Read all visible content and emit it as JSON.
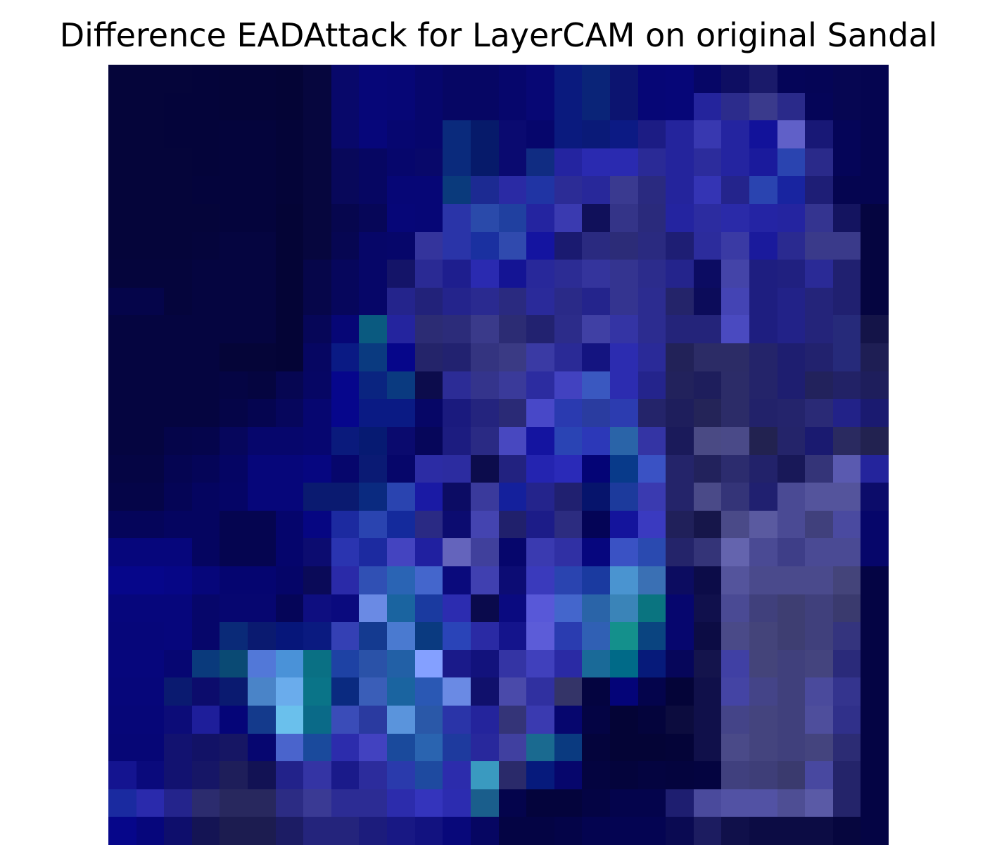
{
  "figure": {
    "title": "Difference EADAttack for LayerCAM on original Sandal"
  },
  "image": {
    "description_kind": "pixelated 28x28 heatmap in dark-blue / purple / cyan tones",
    "rows": [
      [
        "#05053a",
        "#05053a",
        "#05053a",
        "#04043a",
        "#040438",
        "#040438",
        "#040436",
        "#06063e",
        "#08086a",
        "#060678",
        "#060676",
        "#06066c",
        "#060664",
        "#060664",
        "#06066c",
        "#070774",
        "#0a1a7e",
        "#0a2478",
        "#0c1470",
        "#060676",
        "#060678",
        "#060666",
        "#0e0e62",
        "#1a1a6a",
        "#050558",
        "#050556",
        "#060652",
        "#050550"
      ],
      [
        "#05053a",
        "#05053a",
        "#04043a",
        "#04043a",
        "#040438",
        "#040438",
        "#040436",
        "#06063e",
        "#08086a",
        "#060678",
        "#060676",
        "#06066c",
        "#060664",
        "#060664",
        "#06066c",
        "#070774",
        "#0a1a7e",
        "#0a2478",
        "#0c1470",
        "#060676",
        "#060678",
        "#24249c",
        "#2c2c8c",
        "#3a3a8c",
        "#2a2a8a",
        "#050558",
        "#060652",
        "#050550"
      ],
      [
        "#05053a",
        "#05053a",
        "#04043a",
        "#04043a",
        "#04043c",
        "#04043c",
        "#040438",
        "#06063e",
        "#08086a",
        "#06067a",
        "#060670",
        "#06066c",
        "#0a2a7c",
        "#061a6a",
        "#0a0a70",
        "#06066c",
        "#0a1a7e",
        "#0a1a78",
        "#0c1a84",
        "#1c1c84",
        "#24249c",
        "#3838b0",
        "#2424a0",
        "#12129a",
        "#6060c8",
        "#181876",
        "#050558",
        "#050550"
      ],
      [
        "#05053a",
        "#05053a",
        "#05053a",
        "#04043a",
        "#04043c",
        "#04043c",
        "#040438",
        "#06063e",
        "#08085a",
        "#060662",
        "#06066c",
        "#08086a",
        "#0a2a7c",
        "#061a6a",
        "#0a0a70",
        "#102c82",
        "#2424a0",
        "#2a2ab0",
        "#2a2ab0",
        "#2a2a96",
        "#24249c",
        "#2c2c9c",
        "#2424a0",
        "#1a1a9c",
        "#2a44b0",
        "#2a2a8a",
        "#050558",
        "#050550"
      ],
      [
        "#05053a",
        "#05053a",
        "#05053a",
        "#04043c",
        "#04043c",
        "#04043c",
        "#040438",
        "#06063e",
        "#08085a",
        "#060662",
        "#060676",
        "#060676",
        "#0a3a7c",
        "#1c2a92",
        "#2a2aa4",
        "#2034a4",
        "#2c2c96",
        "#28289a",
        "#3a3a90",
        "#2a2a80",
        "#24249c",
        "#3434b4",
        "#24248c",
        "#2a44b0",
        "#1824a0",
        "#1e1e76",
        "#050550",
        "#050550"
      ],
      [
        "#05053a",
        "#05053a",
        "#05053a",
        "#05053a",
        "#04043c",
        "#04043c",
        "#040436",
        "#06063e",
        "#06064e",
        "#060658",
        "#060678",
        "#060676",
        "#2a34a8",
        "#2a4aaa",
        "#2040a0",
        "#2424a0",
        "#3a3ab0",
        "#10105a",
        "#343488",
        "#2a2a7c",
        "#2424a0",
        "#2c2ca0",
        "#2a2aa8",
        "#2424a4",
        "#2424a0",
        "#343490",
        "#141460",
        "#050540"
      ],
      [
        "#05053a",
        "#05053a",
        "#05053a",
        "#05053c",
        "#050540",
        "#050540",
        "#040436",
        "#06063e",
        "#060652",
        "#060668",
        "#06066a",
        "#34349c",
        "#2a34a8",
        "#1a30a0",
        "#304aae",
        "#1414a0",
        "#1a1a70",
        "#2a2a80",
        "#2c2c78",
        "#2a2a80",
        "#1e1e74",
        "#2c2c9c",
        "#3a3aa4",
        "#1a1a9c",
        "#2a2a90",
        "#3a3a8a",
        "#3a3a8a",
        "#050540"
      ],
      [
        "#05053c",
        "#05053c",
        "#05053c",
        "#050540",
        "#050540",
        "#050540",
        "#040436",
        "#06064a",
        "#06065c",
        "#060668",
        "#141468",
        "#2a2a94",
        "#1e1e8e",
        "#2a2ab0",
        "#141494",
        "#28289a",
        "#2c2c94",
        "#34349c",
        "#343490",
        "#2c2c8c",
        "#24248c",
        "#0c0c62",
        "#4444a8",
        "#1e1e80",
        "#202080",
        "#2a2a96",
        "#202070",
        "#050540"
      ],
      [
        "#05054a",
        "#05054a",
        "#05053c",
        "#050540",
        "#050540",
        "#050540",
        "#040436",
        "#06064a",
        "#06065c",
        "#060668",
        "#24248c",
        "#22227a",
        "#24248c",
        "#2a2a90",
        "#2a2a80",
        "#2a2a9a",
        "#2a2a88",
        "#24248c",
        "#343490",
        "#2c2c90",
        "#24246a",
        "#0c0c5a",
        "#4444b4",
        "#1e1e80",
        "#222288",
        "#24247a",
        "#202070",
        "#050540"
      ],
      [
        "#050540",
        "#050540",
        "#050540",
        "#050540",
        "#050540",
        "#050540",
        "#040436",
        "#060658",
        "#060676",
        "#0a5a80",
        "#24249e",
        "#2c2c74",
        "#2c2c7a",
        "#3a3a8a",
        "#2c2c74",
        "#222270",
        "#2c2c8a",
        "#4040a4",
        "#3434a4",
        "#2c2c90",
        "#24247a",
        "#24247a",
        "#4a4ac0",
        "#1e1e80",
        "#222288",
        "#24247a",
        "#262a7a",
        "#141448"
      ],
      [
        "#050540",
        "#050540",
        "#050540",
        "#050540",
        "#050538",
        "#050538",
        "#040436",
        "#060662",
        "#0a1a84",
        "#0a3a80",
        "#06068a",
        "#24246a",
        "#222270",
        "#343480",
        "#3a3a84",
        "#3a3aa4",
        "#2a2a96",
        "#141480",
        "#2c2cb0",
        "#2a2a98",
        "#222258",
        "#2c2c66",
        "#2c2c66",
        "#24246a",
        "#1e1e70",
        "#22226e",
        "#262a7a",
        "#1e1e54"
      ],
      [
        "#050540",
        "#050540",
        "#050540",
        "#050540",
        "#050544",
        "#050540",
        "#060652",
        "#060664",
        "#06068c",
        "#0a2480",
        "#0a3a80",
        "#0c0c4c",
        "#2c2c96",
        "#34348c",
        "#3a3a9a",
        "#2c2ca0",
        "#4242c0",
        "#3a58c0",
        "#2c2cb0",
        "#24248c",
        "#22225c",
        "#1e1e5c",
        "#2c2c68",
        "#24246a",
        "#1e1e70",
        "#22225c",
        "#222266",
        "#1e1e5c"
      ],
      [
        "#050540",
        "#050540",
        "#050540",
        "#050540",
        "#050548",
        "#050550",
        "#06065c",
        "#060670",
        "#06068c",
        "#0a1a84",
        "#0a1a84",
        "#060666",
        "#1a1a7e",
        "#24247e",
        "#2a2a76",
        "#4848c8",
        "#2a3ab0",
        "#2a3ca0",
        "#2c3cb0",
        "#24246a",
        "#1e1e5c",
        "#242458",
        "#2c2c68",
        "#22226a",
        "#24246c",
        "#2a2a76",
        "#222288",
        "#1a1a70"
      ],
      [
        "#050540",
        "#050540",
        "#05054a",
        "#05054c",
        "#06065c",
        "#06066c",
        "#06066c",
        "#060670",
        "#0a1a7c",
        "#061a72",
        "#0a0a6e",
        "#06065a",
        "#1c1c80",
        "#2a2a84",
        "#4848c0",
        "#1414a0",
        "#2a44b4",
        "#2c38b8",
        "#2a64a8",
        "#3434a4",
        "#1a1a5a",
        "#4a4a84",
        "#4a4a88",
        "#222250",
        "#24246a",
        "#1a1a70",
        "#2a2a60",
        "#222250"
      ],
      [
        "#050544",
        "#050544",
        "#050552",
        "#050558",
        "#050564",
        "#06067a",
        "#06067a",
        "#060680",
        "#06066c",
        "#0a1a74",
        "#06066a",
        "#2c2ca4",
        "#2c2ca0",
        "#0c0c4c",
        "#222280",
        "#2424b0",
        "#2a2ab8",
        "#040476",
        "#083a8a",
        "#3a52c4",
        "#24246a",
        "#22225c",
        "#2c2c6e",
        "#22226a",
        "#181858",
        "#343478",
        "#5a5ab0",
        "#24249c"
      ],
      [
        "#050548",
        "#050548",
        "#050556",
        "#050560",
        "#050566",
        "#06067a",
        "#06067a",
        "#0a1a70",
        "#0a1a70",
        "#0a2a80",
        "#2a44b0",
        "#1a1aa4",
        "#0c0c64",
        "#3a3a9c",
        "#14209c",
        "#24248c",
        "#202070",
        "#06146c",
        "#1c3a9c",
        "#3a3ab0",
        "#24246a",
        "#4a4a88",
        "#343478",
        "#202070",
        "#4a4a94",
        "#54549c",
        "#54549c",
        "#0c0c6a"
      ],
      [
        "#05055a",
        "#05055a",
        "#050560",
        "#050560",
        "#050550",
        "#050550",
        "#05056c",
        "#060682",
        "#1c2aa0",
        "#2a44b0",
        "#142a9c",
        "#2a2a84",
        "#0c0c70",
        "#4444b0",
        "#20206c",
        "#1c1c88",
        "#2c2c80",
        "#040456",
        "#14149c",
        "#3a3ac0",
        "#20205a",
        "#16164a",
        "#4a4a88",
        "#5a5aa0",
        "#4a4a94",
        "#40407c",
        "#4a4aa0",
        "#06066a"
      ],
      [
        "#06067c",
        "#06067c",
        "#06067c",
        "#050560",
        "#050550",
        "#050550",
        "#05056c",
        "#0c0c70",
        "#2a34b0",
        "#1c2aa0",
        "#4444c0",
        "#2020a0",
        "#6464bc",
        "#40409c",
        "#06066c",
        "#3a3ab0",
        "#3030a4",
        "#06067e",
        "#3a52c4",
        "#2a4ab0",
        "#24246a",
        "#343478",
        "#6464ae",
        "#4a4a94",
        "#3e3e88",
        "#4a4a94",
        "#4a4a94",
        "#06066a"
      ],
      [
        "#06068a",
        "#06068a",
        "#060686",
        "#06067a",
        "#050570",
        "#050570",
        "#050568",
        "#0a0a58",
        "#2a2aa8",
        "#3050b4",
        "#2a64b4",
        "#4466cc",
        "#0a0a7c",
        "#4040b0",
        "#0c0c74",
        "#3a3abc",
        "#2a44b0",
        "#1a3aa0",
        "#4a94d0",
        "#3a70b4",
        "#0c0c60",
        "#0c0c48",
        "#54549c",
        "#4a4a8c",
        "#4a4a8c",
        "#4a4a8c",
        "#44447a",
        "#040444"
      ],
      [
        "#06067c",
        "#06067c",
        "#06067c",
        "#06066a",
        "#060670",
        "#060670",
        "#050558",
        "#0e0e80",
        "#0a0a7e",
        "#6a8ae4",
        "#1a64a0",
        "#1a3aa0",
        "#2c2cb0",
        "#0a0a4c",
        "#0a0a80",
        "#5858d8",
        "#4466cc",
        "#2a64a8",
        "#3a84b8",
        "#0a7480",
        "#06066e",
        "#10104c",
        "#4a4a94",
        "#40407c",
        "#3e3e72",
        "#40407c",
        "#3a3a6e",
        "#040444"
      ],
      [
        "#06067a",
        "#06067a",
        "#06067c",
        "#06066a",
        "#0a2a78",
        "#0a1a70",
        "#06167a",
        "#0a1a80",
        "#3440b4",
        "#143a90",
        "#4a7ad0",
        "#0a3a80",
        "#2a44b8",
        "#2a2aa4",
        "#14148c",
        "#5c5cd8",
        "#2a3cb0",
        "#3060b4",
        "#14908c",
        "#0a4480",
        "#06066e",
        "#0c0c44",
        "#4a4a88",
        "#44447a",
        "#3e3e72",
        "#40407c",
        "#34347e",
        "#040444"
      ],
      [
        "#06067c",
        "#06067c",
        "#060672",
        "#0a3a7c",
        "#0a4a74",
        "#5278d8",
        "#4a92d8",
        "#0a7084",
        "#1e42a4",
        "#2a52a8",
        "#2260a6",
        "#84a0ff",
        "#1a1a8a",
        "#12127c",
        "#3434a4",
        "#4040bc",
        "#2a2aa4",
        "#1a6a98",
        "#006a88",
        "#061a7a",
        "#06065a",
        "#14144c",
        "#4040a4",
        "#44447a",
        "#40407c",
        "#44447e",
        "#2a2a7a",
        "#040444"
      ],
      [
        "#06067a",
        "#06067a",
        "#0a1a70",
        "#0c0c6c",
        "#0a1a70",
        "#4a84c8",
        "#6aacec",
        "#0a7488",
        "#0a2a80",
        "#3a5eb8",
        "#1a64a0",
        "#2a58b4",
        "#6a8ae4",
        "#10106c",
        "#4a4aaa",
        "#3030a0",
        "#343468",
        "#040440",
        "#040478",
        "#04044c",
        "#040438",
        "#10104a",
        "#4444a4",
        "#444488",
        "#40407c",
        "#4a4a9c",
        "#34348e",
        "#040444"
      ],
      [
        "#060678",
        "#060678",
        "#0c0c78",
        "#1e1e9a",
        "#050578",
        "#143a8c",
        "#6ac0ec",
        "#0a6a88",
        "#3a4cb8",
        "#2a3aa0",
        "#5a94dc",
        "#2a58a8",
        "#2a34a8",
        "#24249c",
        "#343478",
        "#3a3ab0",
        "#06066e",
        "#040444",
        "#040436",
        "#04043c",
        "#0c0c3e",
        "#10104a",
        "#444488",
        "#44447e",
        "#40407c",
        "#4e4e9c",
        "#30308a",
        "#040444"
      ],
      [
        "#060676",
        "#060676",
        "#121270",
        "#121266",
        "#161664",
        "#060670",
        "#4a64cc",
        "#1a4a9c",
        "#2c2cac",
        "#4242c0",
        "#1a4a9c",
        "#2a64b0",
        "#1e3a9e",
        "#28289c",
        "#4040a0",
        "#1a6a90",
        "#0a3a80",
        "#04043c",
        "#040436",
        "#040436",
        "#040438",
        "#10104a",
        "#4a4a88",
        "#44447e",
        "#40407c",
        "#44447e",
        "#2c2c74",
        "#040444"
      ],
      [
        "#141490",
        "#0a0a7c",
        "#121270",
        "#161666",
        "#1e1e5a",
        "#121254",
        "#22228a",
        "#3434a4",
        "#1a1a8a",
        "#2c2c9c",
        "#2a3aac",
        "#1e4aa0",
        "#2c2cac",
        "#3a9ac0",
        "#2a2a6a",
        "#061a7c",
        "#06066c",
        "#040440",
        "#04043c",
        "#040440",
        "#04043e",
        "#040440",
        "#40407e",
        "#3e3e78",
        "#3a3a6e",
        "#4848a0",
        "#24246a",
        "#040444"
      ],
      [
        "#1a2aa0",
        "#2a2aac",
        "#24248c",
        "#2c2c6e",
        "#28285e",
        "#28285e",
        "#2c2c84",
        "#3a3a94",
        "#2c2c94",
        "#2c2c94",
        "#2c2cac",
        "#3434bc",
        "#2c2cb0",
        "#1a5e8c",
        "#04044c",
        "#04043c",
        "#04043c",
        "#040444",
        "#04044c",
        "#04044c",
        "#1e1e70",
        "#4a4a9c",
        "#5252a4",
        "#5252a4",
        "#4e4e94",
        "#5a5aa6",
        "#24246a",
        "#040444"
      ],
      [
        "#06068a",
        "#06067c",
        "#0e0e6c",
        "#141454",
        "#1c1c50",
        "#1c1c50",
        "#1c1c64",
        "#24247c",
        "#24247c",
        "#1c1c7c",
        "#181884",
        "#121280",
        "#08087a",
        "#060662",
        "#040444",
        "#040444",
        "#040448",
        "#040450",
        "#040452",
        "#040452",
        "#0a0a52",
        "#1c1c60",
        "#10104a",
        "#0c0c44",
        "#0c0c44",
        "#0c0c44",
        "#06063e",
        "#040444"
      ]
    ]
  }
}
